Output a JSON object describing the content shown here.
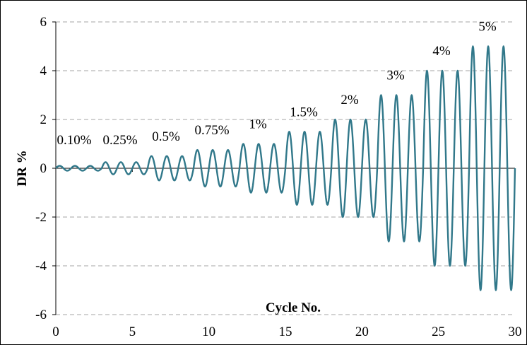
{
  "chart_data": {
    "type": "line",
    "title": "",
    "xlabel": "Cycle No.",
    "ylabel": "DR %",
    "xlim": [
      0,
      30
    ],
    "ylim": [
      -6,
      6
    ],
    "x_ticks": [
      0,
      5,
      10,
      15,
      20,
      25,
      30
    ],
    "y_ticks": [
      -6,
      -4,
      -2,
      0,
      2,
      4,
      6
    ],
    "grid": "horizontal dashed",
    "legend": "none",
    "series": [
      {
        "color": "#31788a",
        "description_of_signal": "sinusoidal drift ratio history, 3 cycles per amplitude level",
        "amplitude_levels": [
          {
            "label": "0.10%",
            "amplitude": 0.1,
            "cycles": 3
          },
          {
            "label": "0.25%",
            "amplitude": 0.25,
            "cycles": 3
          },
          {
            "label": "0.5%",
            "amplitude": 0.5,
            "cycles": 3
          },
          {
            "label": "0.75%",
            "amplitude": 0.75,
            "cycles": 3
          },
          {
            "label": "1%",
            "amplitude": 1.0,
            "cycles": 3
          },
          {
            "label": "1.5%",
            "amplitude": 1.5,
            "cycles": 3
          },
          {
            "label": "2%",
            "amplitude": 2.0,
            "cycles": 3
          },
          {
            "label": "3%",
            "amplitude": 3.0,
            "cycles": 3
          },
          {
            "label": "4%",
            "amplitude": 4.0,
            "cycles": 3
          },
          {
            "label": "5%",
            "amplitude": 5.0,
            "cycles": 3
          }
        ]
      }
    ]
  }
}
